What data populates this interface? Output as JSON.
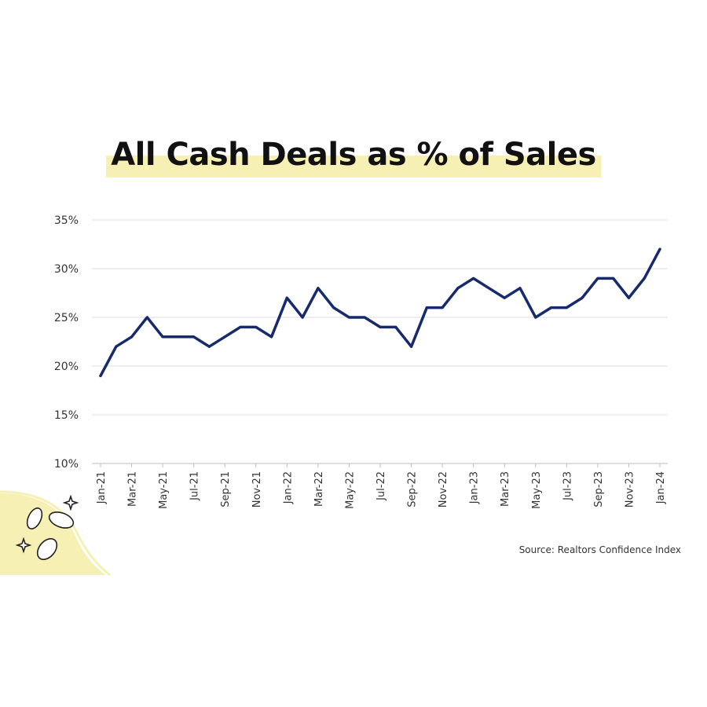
{
  "chart_data": {
    "type": "line",
    "title": "All Cash Deals as % of Sales",
    "source": "Source: Realtors Confidence Index",
    "line_color": "#172a6b",
    "highlight_color": "#f6f0b4",
    "ylim": [
      10,
      35
    ],
    "y_ticks": [
      {
        "value": 10,
        "label": "10%"
      },
      {
        "value": 15,
        "label": "15%"
      },
      {
        "value": 20,
        "label": "20%"
      },
      {
        "value": 25,
        "label": "25%"
      },
      {
        "value": 30,
        "label": "30%"
      },
      {
        "value": 35,
        "label": "35%"
      }
    ],
    "grid": true,
    "x_tick_labels": [
      "Jan-21",
      "Mar-21",
      "May-21",
      "Jul-21",
      "Sep-21",
      "Nov-21",
      "Jan-22",
      "Mar-22",
      "May-22",
      "Jul-22",
      "Sep-22",
      "Nov-22",
      "Jan-23",
      "Mar-23",
      "May-23",
      "Jul-23",
      "Sep-23",
      "Nov-23",
      "Jan-24"
    ],
    "series": [
      {
        "values": [
          19,
          22,
          23,
          25,
          23,
          23,
          23,
          22,
          23,
          24,
          24,
          23,
          27,
          25,
          28,
          26,
          25,
          25,
          24,
          24,
          22,
          26,
          26,
          28,
          29,
          28,
          27,
          28,
          25,
          26,
          26,
          27,
          29,
          29,
          27,
          29,
          32
        ]
      }
    ]
  },
  "decoration": {
    "icon": "coins-icon"
  }
}
